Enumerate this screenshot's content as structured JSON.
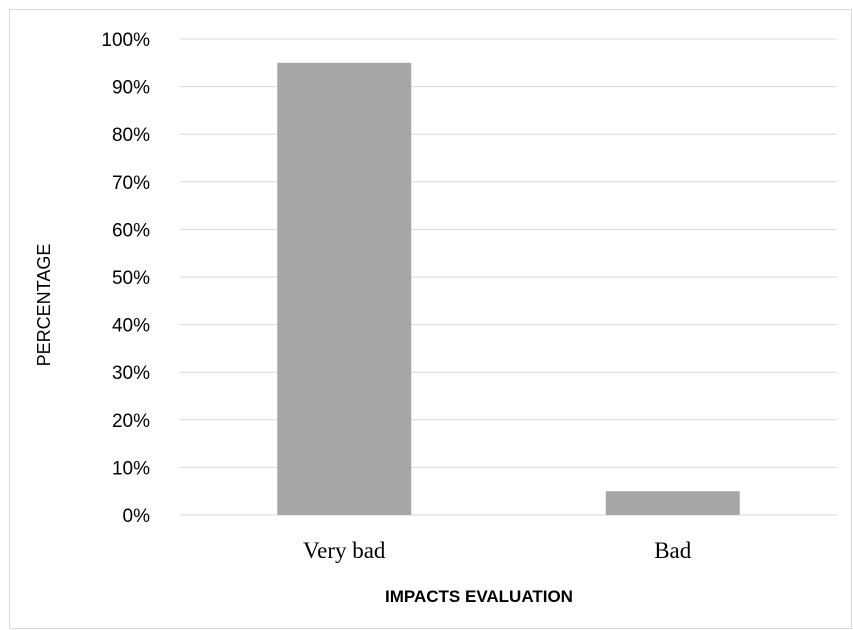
{
  "chart_data": {
    "type": "bar",
    "title": "",
    "categories": [
      "Very bad",
      "Bad"
    ],
    "values": [
      95,
      5
    ],
    "xlabel": "IMPACTS EVALUATION",
    "ylabel": "PERCENTAGE",
    "ylim": [
      0,
      100
    ],
    "yticks": [
      "0%",
      "10%",
      "20%",
      "30%",
      "40%",
      "50%",
      "60%",
      "70%",
      "80%",
      "90%",
      "100%"
    ],
    "grid": true,
    "legend": "none",
    "bar_color": "#a6a6a6",
    "gridline_color": "#d9d9d9"
  }
}
